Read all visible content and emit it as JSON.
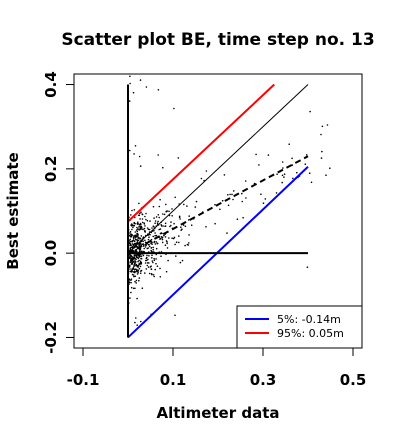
{
  "chart_data": {
    "type": "scatter",
    "title": "Scatter plot BE, time step no. 13",
    "xlabel": "Altimeter data",
    "ylabel": "Best estimate",
    "xlim": [
      -0.12,
      0.52
    ],
    "ylim": [
      -0.225,
      0.425
    ],
    "xticks": [
      "-0.1",
      "0.1",
      "0.3",
      "0.5"
    ],
    "xtick_values": [
      -0.1,
      0.1,
      0.3,
      0.5
    ],
    "yticks": [
      "-0.2",
      "0.0",
      "0.2",
      "0.4"
    ],
    "ytick_values": [
      -0.2,
      0.0,
      0.2,
      0.4
    ],
    "grid": false,
    "legend_position": "bottom-right",
    "legend": [
      {
        "label": "5%: -0.14m",
        "color": "#0000ff"
      },
      {
        "label": "95%:  0.05m",
        "color": "#ff0000"
      }
    ],
    "lines": [
      {
        "name": "identity",
        "x": [
          0.0,
          0.4
        ],
        "y": [
          0.0,
          0.4
        ],
        "color": "#000000",
        "style": "solid",
        "width": 1
      },
      {
        "name": "regression",
        "x": [
          0.0,
          0.4
        ],
        "y": [
          0.0,
          0.23
        ],
        "color": "#000000",
        "style": "dashed",
        "width": 2
      },
      {
        "name": "5% quantile",
        "x": [
          0.0,
          0.4
        ],
        "y": [
          -0.2,
          0.205
        ],
        "color": "#0000ff",
        "style": "solid",
        "width": 2
      },
      {
        "name": "95% quantile",
        "x": [
          0.0,
          0.325
        ],
        "y": [
          0.075,
          0.4
        ],
        "color": "#ff0000",
        "style": "solid",
        "width": 2
      },
      {
        "name": "vertical axis line",
        "x": [
          0.0,
          0.0
        ],
        "y": [
          -0.2,
          0.4
        ],
        "color": "#000000",
        "style": "solid",
        "width": 2
      },
      {
        "name": "horizontal axis line",
        "x": [
          0.0,
          0.4
        ],
        "y": [
          0.0,
          0.0
        ],
        "color": "#000000",
        "style": "solid",
        "width": 2
      }
    ],
    "scatter_summary": {
      "count": 700,
      "x_range": [
        0.0,
        0.45
      ],
      "y_range": [
        -0.22,
        0.42
      ],
      "point_color": "#000000"
    }
  }
}
